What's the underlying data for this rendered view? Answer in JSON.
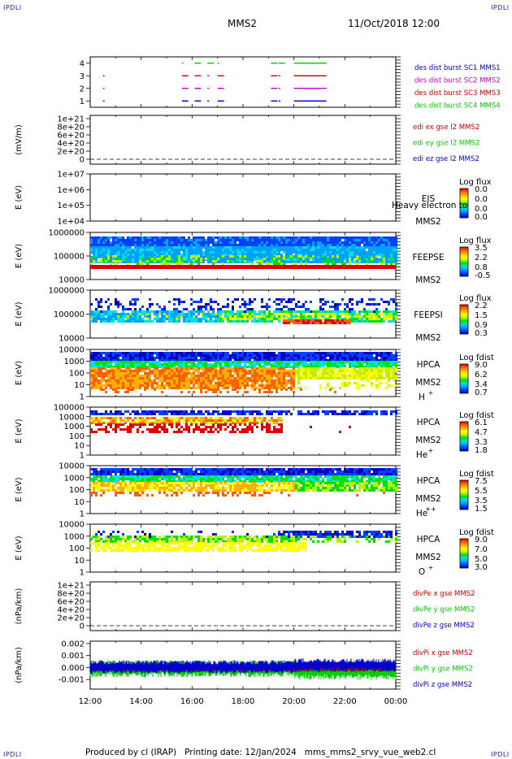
{
  "corner_labels": [
    "IPDLI",
    "IPDLI",
    "IPDLI",
    "IPDLI"
  ],
  "header": {
    "spacecraft": "MMS2",
    "datetime": "11/Oct/2018 12:00"
  },
  "footer": {
    "producer": "Produced by cl (IRAP)",
    "printing_date": "Printing date: 12/Jan/2024",
    "file": "mms_mms2_srvy_vue_web2.cl"
  },
  "colors": {
    "blue": "#0000cc",
    "magenta": "#cc00cc",
    "red": "#cc0000",
    "green": "#00cc00",
    "colorbar": [
      "#0000c0",
      "#0040ff",
      "#00a0ff",
      "#00e0e0",
      "#00e000",
      "#c0f000",
      "#ffff00",
      "#ffb000",
      "#ff6000",
      "#e00000"
    ]
  },
  "chart_data": [
    {
      "id": "burst",
      "type": "scatter",
      "xlabel": "",
      "ylabel": "",
      "x_ticks": [
        "12:00",
        "14:00",
        "16:00",
        "18:00",
        "20:00",
        "22:00",
        "00:00"
      ],
      "y_ticks": [
        "1",
        "2",
        "3",
        "4"
      ],
      "ylim": [
        0.5,
        4.5
      ],
      "series": [
        {
          "name": "des dist burst SC1 MMS1",
          "color": "blue",
          "y": 1,
          "x_hours": [
            12.5,
            15.6,
            16.1,
            16.6,
            17.0,
            19.1,
            19.4,
            20.0
          ]
        },
        {
          "name": "des dist burst SC2 MMS2",
          "color": "magenta",
          "y": 2,
          "x_hours": [
            12.5,
            15.6,
            16.1,
            16.6,
            17.0,
            19.1,
            19.4,
            20.0
          ]
        },
        {
          "name": "des dist burst SC3 MMS3",
          "color": "red",
          "y": 3,
          "x_hours": [
            12.5,
            15.6,
            16.1,
            16.6,
            17.0,
            19.1,
            19.4,
            20.0
          ]
        },
        {
          "name": "des dist burst SC4 MMS4",
          "color": "green",
          "y": 4,
          "x_hours": [
            15.6,
            16.1,
            16.6,
            17.0,
            19.1,
            19.4,
            20.0
          ]
        }
      ]
    },
    {
      "id": "edi",
      "type": "line",
      "ylabel": "(mV/m)",
      "y_ticks": [
        "0",
        "2e+20",
        "4e+20",
        "6e+20",
        "8e+20",
        "1e+21"
      ],
      "series": [
        {
          "name": "edi ex gse l2 MMS2",
          "color": "red"
        },
        {
          "name": "edi ey gse l2 MMS2",
          "color": "green"
        },
        {
          "name": "edi ez gse l2 MMS2",
          "color": "blue"
        }
      ]
    },
    {
      "id": "eis",
      "type": "heatmap",
      "ylabel": "E (eV)",
      "y_ticks": [
        "1e+07",
        "1e+06",
        "1e+05",
        "1e+04"
      ],
      "instrument": "EIS",
      "spacecraft": "MMS2",
      "overlay_text": "Heavy electron to",
      "colorbar_title": "Log flux",
      "colorbar_ticks": [
        "0.0",
        "0.0",
        "0.0",
        "0.0"
      ]
    },
    {
      "id": "feepse",
      "type": "heatmap",
      "ylabel": "E (eV)",
      "y_ticks": [
        "1000000",
        "100000",
        "10000"
      ],
      "instrument": "FEEPSE",
      "spacecraft": "MMS2",
      "colorbar_title": "Log flux",
      "colorbar_ticks": [
        "3.5",
        "2.2",
        "0.8",
        "-0.5"
      ]
    },
    {
      "id": "feepsi",
      "type": "heatmap",
      "ylabel": "E (eV)",
      "y_ticks": [
        "1000000",
        "100000",
        "10000"
      ],
      "instrument": "FEEPSI",
      "spacecraft": "MMS2",
      "colorbar_title": "Log flux",
      "colorbar_ticks": [
        "2.2",
        "1.5",
        "0.9",
        "0.3"
      ]
    },
    {
      "id": "hpca_h",
      "type": "heatmap",
      "ylabel": "E (eV)",
      "y_ticks": [
        "10000",
        "1000",
        "100",
        "10",
        "1"
      ],
      "instrument": "HPCA",
      "spacecraft": "MMS2",
      "species": "H",
      "charge": "+",
      "colorbar_title": "Log fdist",
      "colorbar_ticks": [
        "9.0",
        "6.2",
        "3.4",
        "0.7"
      ]
    },
    {
      "id": "hpca_he",
      "type": "heatmap",
      "ylabel": "E (eV)",
      "y_ticks": [
        "100000",
        "10000",
        "1000",
        "100",
        "10",
        "1"
      ],
      "instrument": "HPCA",
      "spacecraft": "MMS2",
      "species": "He",
      "charge": "+",
      "colorbar_title": "Log fdist",
      "colorbar_ticks": [
        "6.1",
        "4.7",
        "3.3",
        "1.8"
      ]
    },
    {
      "id": "hpca_he2",
      "type": "heatmap",
      "ylabel": "E (eV)",
      "y_ticks": [
        "10000",
        "1000",
        "100",
        "10",
        "1"
      ],
      "instrument": "HPCA",
      "spacecraft": "MMS2",
      "species": "He",
      "charge": "++",
      "colorbar_title": "Log fdist",
      "colorbar_ticks": [
        "7.5",
        "5.5",
        "3.5",
        "1.5"
      ]
    },
    {
      "id": "hpca_o",
      "type": "heatmap",
      "ylabel": "E (eV)",
      "y_ticks": [
        "10000",
        "1000",
        "100",
        "10",
        "1"
      ],
      "instrument": "HPCA",
      "spacecraft": "MMS2",
      "species": "O",
      "charge": "+",
      "colorbar_title": "Log fdist",
      "colorbar_ticks": [
        "9.0",
        "7.0",
        "5.0",
        "3.0"
      ]
    },
    {
      "id": "divpe",
      "type": "line",
      "ylabel": "(nPa/km)",
      "y_ticks": [
        "0",
        "2e+20",
        "4e+20",
        "6e+20",
        "8e+20",
        "1e+21"
      ],
      "series": [
        {
          "name": "divPe x gse MMS2",
          "color": "red"
        },
        {
          "name": "divPe y gse MMS2",
          "color": "green"
        },
        {
          "name": "divPe z gse MMS2",
          "color": "blue"
        }
      ]
    },
    {
      "id": "divpi",
      "type": "line",
      "ylabel": "(nPa/km)",
      "y_ticks": [
        "0.002",
        "0.001",
        "0.000",
        "-0.001"
      ],
      "ylim": [
        -0.0018,
        0.0022
      ],
      "series": [
        {
          "name": "divPi x gse MMS2",
          "color": "red"
        },
        {
          "name": "divPi y gse MMS2",
          "color": "green"
        },
        {
          "name": "divPi z gse MMS2",
          "color": "blue"
        }
      ]
    }
  ]
}
